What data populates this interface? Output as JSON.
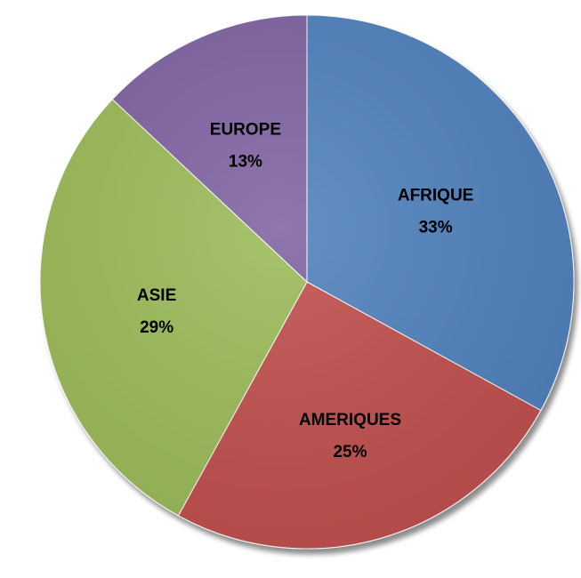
{
  "chart_data": {
    "type": "pie",
    "title": "",
    "legend": "none",
    "start_angle": "top, clockwise",
    "slices": [
      {
        "label": "AFRIQUE",
        "value": 33,
        "value_label": "33%",
        "color": "#4F81BD"
      },
      {
        "label": "AMERIQUES",
        "value": 25,
        "value_label": "25%",
        "color": "#C0504D"
      },
      {
        "label": "ASIE",
        "value": 29,
        "value_label": "29%",
        "color": "#9BBB59"
      },
      {
        "label": "EUROPE",
        "value": 13,
        "value_label": "13%",
        "color": "#8064A2"
      }
    ]
  }
}
